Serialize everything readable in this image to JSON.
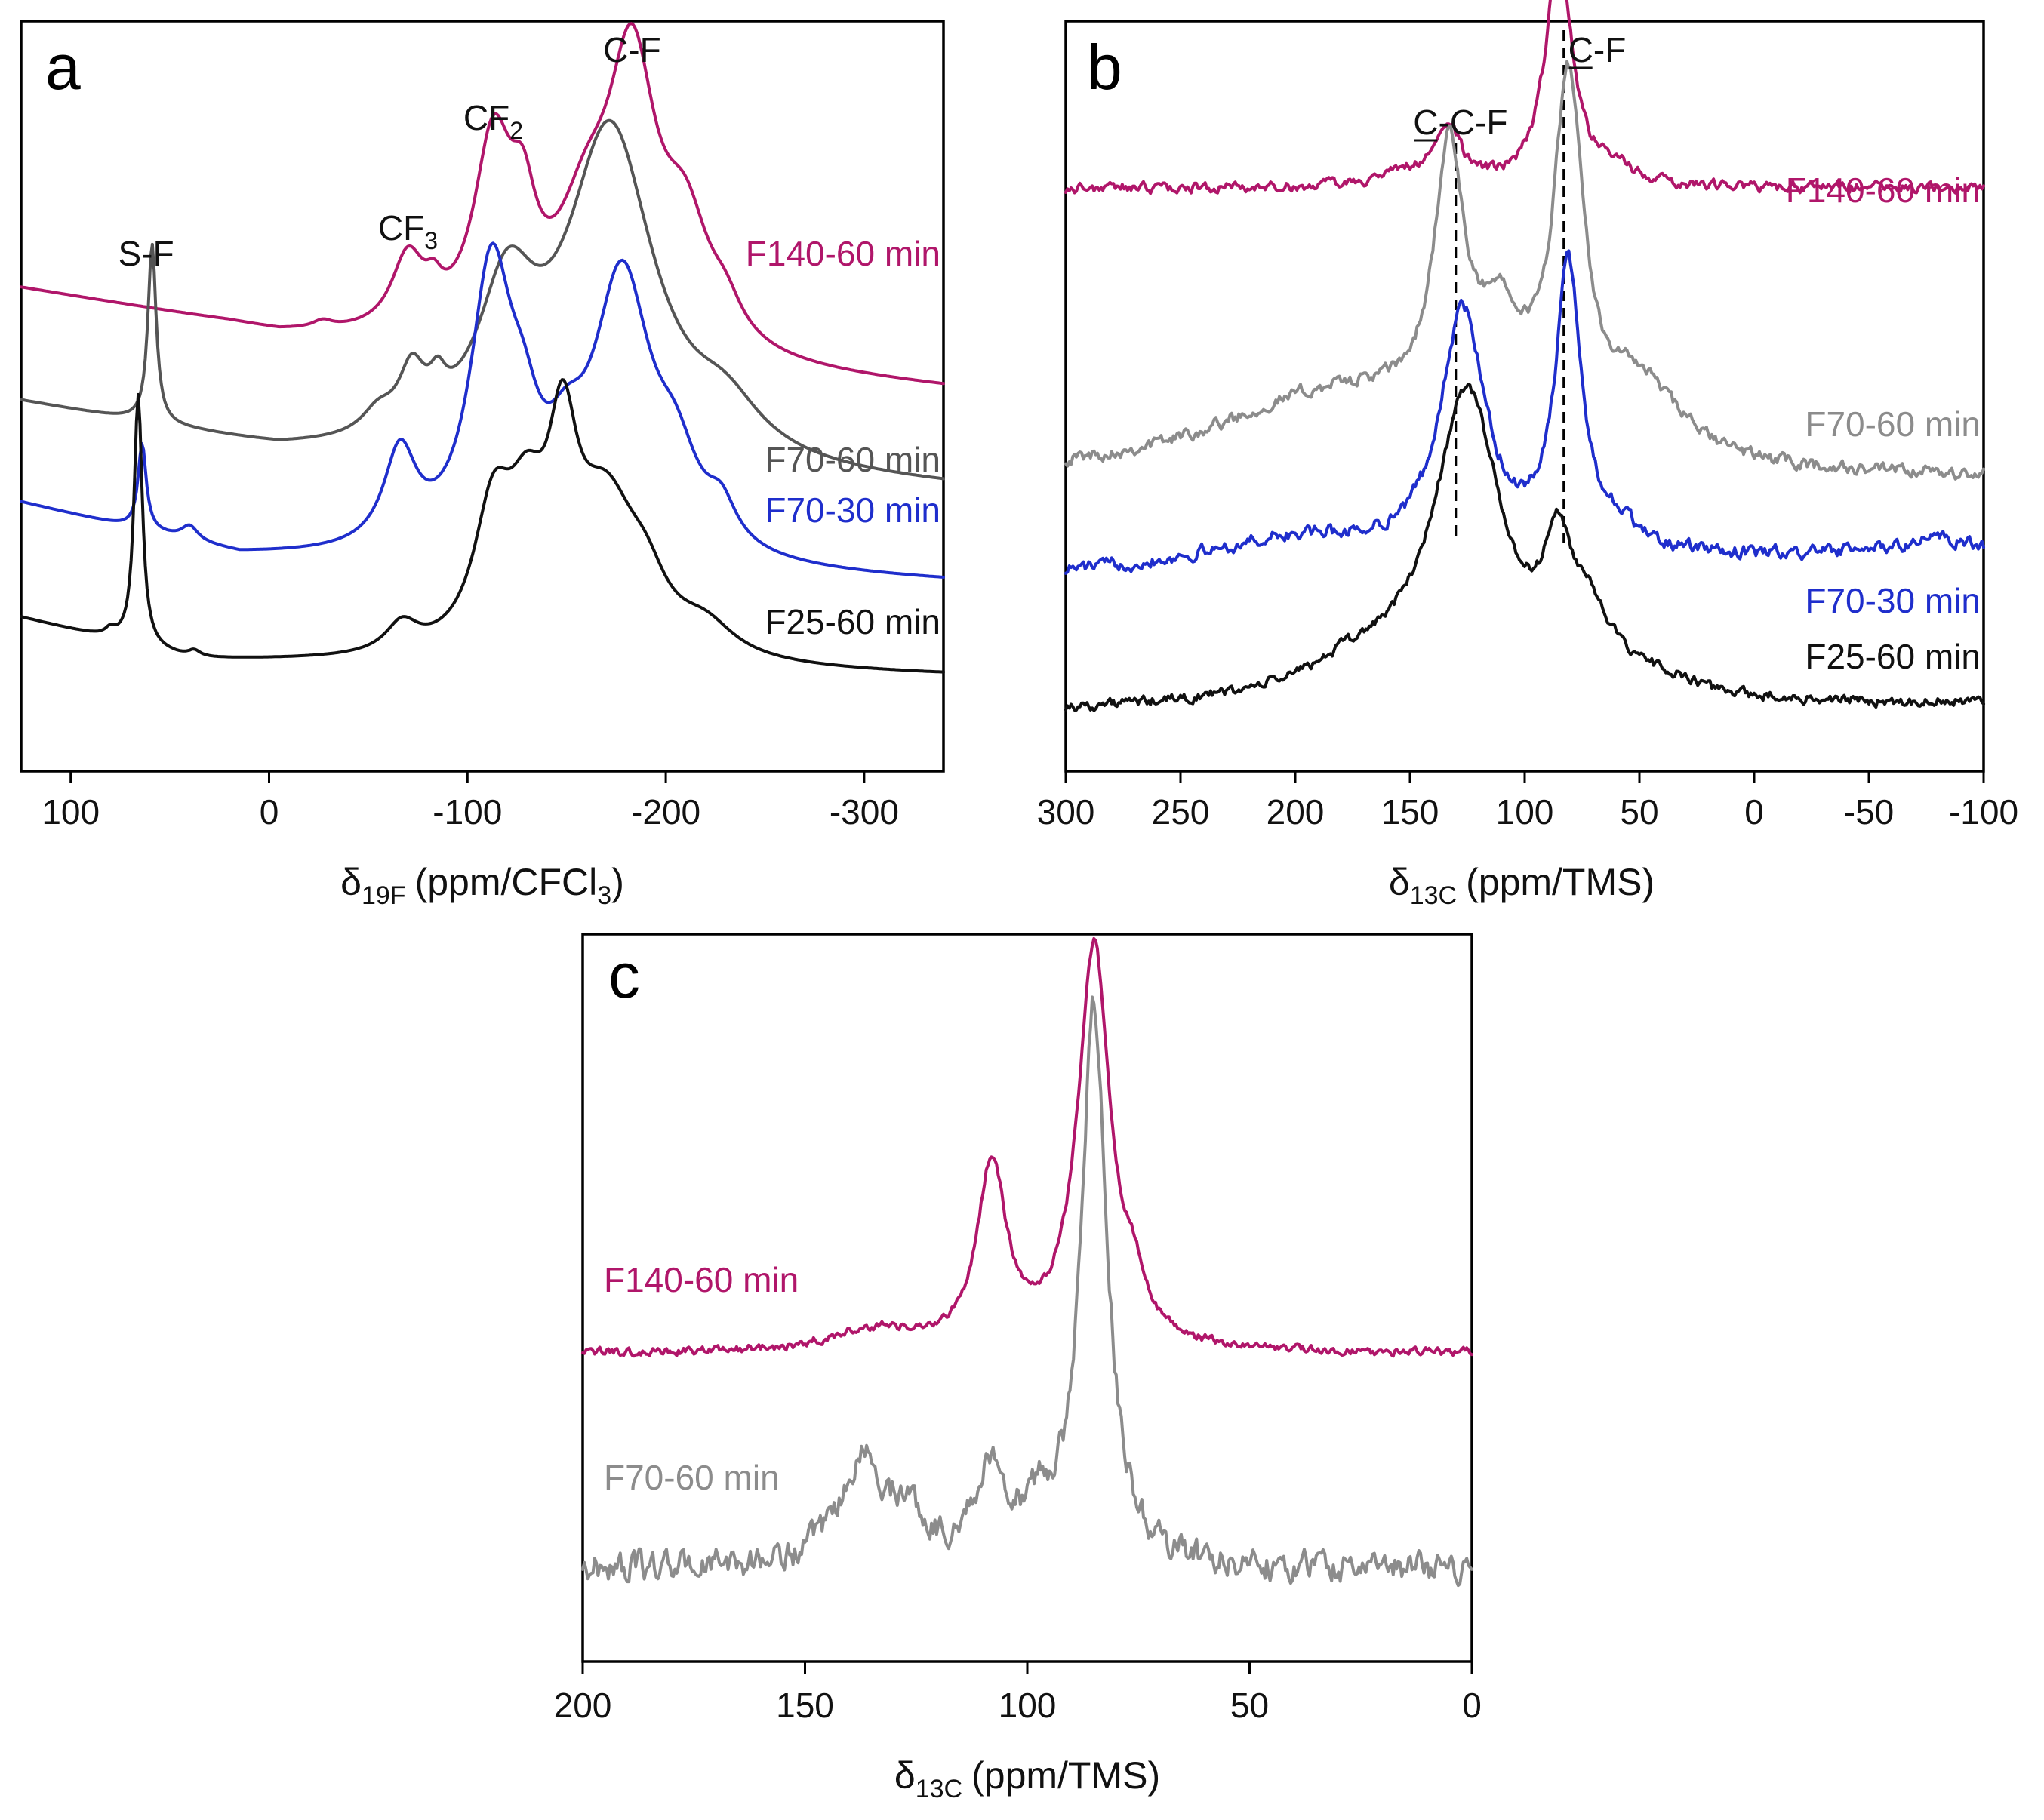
{
  "colors": {
    "magenta": "#b0166a",
    "dark_grey": "#555555",
    "grey": "#8c8c8c",
    "blue": "#1f2ecc",
    "black": "#111111"
  },
  "chart_data": [
    {
      "panel": "a",
      "type": "line",
      "xlabel_symbol": "δ",
      "xlabel_sub": "19F",
      "xlabel_unit": "(ppm/CFCl",
      "xlabel_unit_sub": "3",
      "xlabel_close": ")",
      "xlim": [
        125,
        -340
      ],
      "ylim": [
        0,
        1
      ],
      "xticks": [
        100,
        0,
        -100,
        -200,
        -300
      ],
      "xticklabels": [
        "100",
        "0",
        "-100",
        "-200",
        "-300"
      ],
      "grid": false,
      "annotations": [
        {
          "id": "sf",
          "text": "S-F",
          "x": 62
        },
        {
          "id": "cf3",
          "text": "CF",
          "sub": "3",
          "x": -70
        },
        {
          "id": "cf2",
          "text": "CF",
          "sub": "2",
          "x": -113
        },
        {
          "id": "cf",
          "text": "C-F",
          "x": -183
        }
      ],
      "series": [
        {
          "name": "F140-60 min",
          "color": "magenta",
          "label_pos": "right-upper",
          "baseline": [
            [
              125,
              0.66
            ],
            [
              20,
              0.61
            ],
            [
              -5,
              0.595
            ],
            [
              -340,
              0.52
            ]
          ],
          "peaks": [
            {
              "center": -27,
              "height": 0.01,
              "width": 6
            },
            {
              "center": -70,
              "height": 0.1,
              "width": 10
            },
            {
              "center": -83,
              "height": 0.03,
              "width": 5
            },
            {
              "center": -113,
              "height": 0.26,
              "width": 12
            },
            {
              "center": -128,
              "height": 0.12,
              "width": 8
            },
            {
              "center": -160,
              "height": 0.15,
              "width": 18
            },
            {
              "center": -183,
              "height": 0.37,
              "width": 15
            },
            {
              "center": -210,
              "height": 0.15,
              "width": 15
            },
            {
              "center": -230,
              "height": 0.04,
              "width": 10
            }
          ]
        },
        {
          "name": "F70-60 min",
          "color": "dark_grey",
          "label_pos": "right-middle",
          "baseline": [
            [
              125,
              0.5
            ],
            [
              -5,
              0.43
            ],
            [
              -340,
              0.38
            ]
          ],
          "peaks": [
            {
              "center": 59,
              "height": 0.25,
              "width": 2.5
            },
            {
              "center": -55,
              "height": 0.03,
              "width": 10
            },
            {
              "center": -72,
              "height": 0.08,
              "width": 8
            },
            {
              "center": -85,
              "height": 0.04,
              "width": 5
            },
            {
              "center": -120,
              "height": 0.2,
              "width": 18
            },
            {
              "center": -172,
              "height": 0.46,
              "width": 27
            },
            {
              "center": -230,
              "height": 0.06,
              "width": 22
            }
          ]
        },
        {
          "name": "F70-30 min",
          "color": "blue",
          "label_pos": "right-middle",
          "baseline": [
            [
              125,
              0.36
            ],
            [
              15,
              0.285
            ],
            [
              -340,
              0.25
            ]
          ],
          "peaks": [
            {
              "center": 64,
              "height": 0.12,
              "width": 2.5
            },
            {
              "center": 40,
              "height": 0.02,
              "width": 5
            },
            {
              "center": -66,
              "height": 0.13,
              "width": 10
            },
            {
              "center": -112,
              "height": 0.38,
              "width": 13
            },
            {
              "center": -128,
              "height": 0.1,
              "width": 10
            },
            {
              "center": -150,
              "height": 0.08,
              "width": 12
            },
            {
              "center": -178,
              "height": 0.38,
              "width": 18
            },
            {
              "center": -205,
              "height": 0.1,
              "width": 14
            },
            {
              "center": -228,
              "height": 0.05,
              "width": 9
            }
          ]
        },
        {
          "name": "F25-60 min",
          "color": "black",
          "label_pos": "right-lower",
          "baseline": [
            [
              125,
              0.2
            ],
            [
              40,
              0.14
            ],
            [
              -340,
              0.12
            ]
          ],
          "peaks": [
            {
              "center": 66,
              "height": 0.35,
              "width": 2.5
            },
            {
              "center": 80,
              "height": 0.01,
              "width": 3
            },
            {
              "center": 38,
              "height": 0.01,
              "width": 4
            },
            {
              "center": -67,
              "height": 0.04,
              "width": 10
            },
            {
              "center": -113,
              "height": 0.18,
              "width": 12
            },
            {
              "center": -130,
              "height": 0.15,
              "width": 12
            },
            {
              "center": -148,
              "height": 0.24,
              "width": 9
            },
            {
              "center": -170,
              "height": 0.2,
              "width": 20
            },
            {
              "center": -190,
              "height": 0.06,
              "width": 13
            },
            {
              "center": -220,
              "height": 0.04,
              "width": 18
            }
          ]
        }
      ]
    },
    {
      "panel": "b",
      "type": "line",
      "xlabel_symbol": "δ",
      "xlabel_sub": "13C",
      "xlabel_unit": "(ppm/TMS)",
      "xlim": [
        300,
        -100
      ],
      "ylim": [
        0,
        1
      ],
      "xticks": [
        300,
        250,
        200,
        150,
        100,
        50,
        0,
        -50,
        -100
      ],
      "xticklabels": [
        "300",
        "250",
        "200",
        "150",
        "100",
        "50",
        "0",
        "-50",
        "-100"
      ],
      "grid": false,
      "dashed_markers": [
        130,
        83
      ],
      "annotations": [
        {
          "id": "ccf",
          "text": "C-C-F",
          "x": 128,
          "underline_first": true
        },
        {
          "id": "cf",
          "text": "C-F",
          "x": 75,
          "underline_first": true
        }
      ],
      "series": [
        {
          "name": "F140-60 min",
          "color": "magenta",
          "label_pos": "right-upper",
          "noise": 0.012,
          "baseline": [
            [
              300,
              0.8
            ],
            [
              -100,
              0.8
            ]
          ],
          "peaks": [
            {
              "center": 133,
              "height": 0.08,
              "width": 6
            },
            {
              "center": 150,
              "height": 0.02,
              "width": 15
            },
            {
              "center": 85,
              "height": 0.33,
              "width": 7
            },
            {
              "center": 60,
              "height": 0.02,
              "width": 10
            }
          ]
        },
        {
          "name": "F70-60 min",
          "color": "grey",
          "label_pos": "right-middle",
          "noise": 0.015,
          "baseline": [
            [
              300,
              0.39
            ],
            [
              -100,
              0.39
            ]
          ],
          "peaks": [
            {
              "center": 133,
              "height": 0.36,
              "width": 8
            },
            {
              "center": 110,
              "height": 0.14,
              "width": 12
            },
            {
              "center": 180,
              "height": 0.12,
              "width": 70
            },
            {
              "center": 81,
              "height": 0.48,
              "width": 8
            },
            {
              "center": 50,
              "height": 0.1,
              "width": 22
            }
          ]
        },
        {
          "name": "F70-30 min",
          "color": "blue",
          "label_pos": "right-lower",
          "noise": 0.015,
          "baseline": [
            [
              300,
              0.26
            ],
            [
              -100,
              0.29
            ]
          ],
          "peaks": [
            {
              "center": 127,
              "height": 0.34,
              "width": 12
            },
            {
              "center": 200,
              "height": 0.04,
              "width": 50
            },
            {
              "center": 81,
              "height": 0.39,
              "width": 7
            },
            {
              "center": 60,
              "height": 0.03,
              "width": 12
            },
            {
              "center": -80,
              "height": 0.02,
              "width": 20
            }
          ]
        },
        {
          "name": "F25-60 min",
          "color": "black",
          "label_pos": "right-lower",
          "noise": 0.012,
          "baseline": [
            [
              300,
              0.07
            ],
            [
              -100,
              0.08
            ]
          ],
          "peaks": [
            {
              "center": 125,
              "height": 0.42,
              "width": 18
            },
            {
              "center": 170,
              "height": 0.05,
              "width": 35
            },
            {
              "center": 86,
              "height": 0.15,
              "width": 7
            },
            {
              "center": 72,
              "height": 0.1,
              "width": 12
            },
            {
              "center": 40,
              "height": 0.02,
              "width": 15
            }
          ]
        }
      ]
    },
    {
      "panel": "c",
      "type": "line",
      "xlabel_symbol": "δ",
      "xlabel_sub": "13C",
      "xlabel_unit": "(ppm/TMS)",
      "xlim": [
        200,
        0
      ],
      "ylim": [
        0,
        1
      ],
      "xticks": [
        200,
        150,
        100,
        50,
        0
      ],
      "xticklabels": [
        "200",
        "150",
        "100",
        "50",
        "0"
      ],
      "grid": false,
      "series": [
        {
          "name": "F140-60 min",
          "color": "magenta",
          "label_pos": "left-upper",
          "noise": 0.01,
          "baseline": [
            [
              200,
              0.43
            ],
            [
              0,
              0.43
            ]
          ],
          "peaks": [
            {
              "center": 135,
              "height": 0.03,
              "width": 12
            },
            {
              "center": 108,
              "height": 0.26,
              "width": 4
            },
            {
              "center": 85,
              "height": 0.58,
              "width": 4.5
            },
            {
              "center": 76,
              "height": 0.05,
              "width": 3
            }
          ]
        },
        {
          "name": "F70-60 min",
          "color": "grey",
          "label_pos": "left-lower",
          "noise": 0.035,
          "baseline": [
            [
              200,
              0.12
            ],
            [
              0,
              0.12
            ]
          ],
          "peaks": [
            {
              "center": 137,
              "height": 0.15,
              "width": 6
            },
            {
              "center": 127,
              "height": 0.06,
              "width": 4
            },
            {
              "center": 108,
              "height": 0.13,
              "width": 5
            },
            {
              "center": 85,
              "height": 0.81,
              "width": 3.5
            },
            {
              "center": 97,
              "height": 0.05,
              "width": 3
            }
          ]
        }
      ]
    }
  ]
}
